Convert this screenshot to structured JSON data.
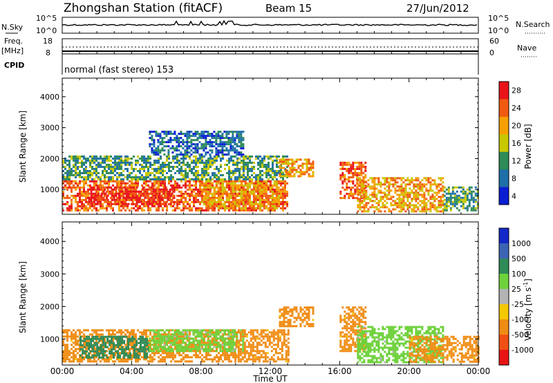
{
  "header": {
    "station": "Zhongshan Station (fitACF)",
    "beam": "Beam 15",
    "date": "27/Jun/2012"
  },
  "top_panels": {
    "nsky_label": "N.Sky",
    "nsky_ticks": [
      "10^5",
      "10^0"
    ],
    "nsearch_label": "N.Search",
    "nsearch_ticks": [
      "10^5",
      "10^0"
    ],
    "freq_label": "Freq.",
    "freq_unit": "[MHz]",
    "freq_ticks": [
      "18",
      "8"
    ],
    "nave_label": "Nave",
    "nave_ticks": [
      "60",
      "0"
    ],
    "cpid_label": "CPID",
    "cpid_text": "normal (fast stereo) 153"
  },
  "power_colorbar": {
    "title": "Power [dB]",
    "levels": [
      "28",
      "24",
      "20",
      "16",
      "12",
      "8",
      "4"
    ],
    "colors": [
      "#e8141a",
      "#f05a10",
      "#f5a000",
      "#c8c800",
      "#2e8b57",
      "#1f6fa8",
      "#0a1ed2"
    ]
  },
  "velocity_colorbar": {
    "title": "Velocity [m s",
    "title_sup": "-1",
    "title_end": "]",
    "levels": [
      "1000",
      "500",
      "100",
      "25",
      "-25",
      "-100",
      "-500",
      "-1000"
    ],
    "colors": [
      "#1428c8",
      "#3c64b4",
      "#2e8b57",
      "#6ed23c",
      "#b4b4b4",
      "#f5c800",
      "#f08c14",
      "#f05014",
      "#e81414"
    ]
  },
  "chart_data": [
    {
      "type": "heatmap",
      "title": "Power",
      "ylabel": "Slant Range [km]",
      "xlabel": "Time UT",
      "x_ticks": [
        "00:00",
        "04:00",
        "08:00",
        "12:00",
        "16:00",
        "20:00",
        "00:00"
      ],
      "y_ticks": [
        1000,
        2000,
        3000,
        4000
      ],
      "ylim": [
        200,
        4600
      ],
      "xlim_hours": [
        0,
        24
      ],
      "regions": [
        {
          "t0": 0.0,
          "t1": 13.0,
          "r0": 300,
          "r1": 1300,
          "level": 24
        },
        {
          "t0": 1.5,
          "t1": 6.5,
          "r0": 500,
          "r1": 1100,
          "level": 28
        },
        {
          "t0": 8.0,
          "t1": 12.5,
          "r0": 400,
          "r1": 1300,
          "level": 20
        },
        {
          "t0": 0.0,
          "t1": 13.0,
          "r0": 1300,
          "r1": 2100,
          "level": 12
        },
        {
          "t0": 5.0,
          "t1": 10.5,
          "r0": 2100,
          "r1": 2900,
          "level": 8
        },
        {
          "t0": 12.5,
          "t1": 14.5,
          "r0": 1400,
          "r1": 2000,
          "level": 20
        },
        {
          "t0": 16.0,
          "t1": 17.5,
          "r0": 700,
          "r1": 1900,
          "level": 24
        },
        {
          "t0": 17.0,
          "t1": 22.0,
          "r0": 300,
          "r1": 1400,
          "level": 20
        },
        {
          "t0": 22.0,
          "t1": 24.0,
          "r0": 300,
          "r1": 1100,
          "level": 12
        }
      ]
    },
    {
      "type": "heatmap",
      "title": "Velocity",
      "ylabel": "Slant Range [km]",
      "xlabel": "Time UT",
      "x_ticks": [
        "00:00",
        "04:00",
        "08:00",
        "12:00",
        "16:00",
        "20:00",
        "00:00"
      ],
      "y_ticks": [
        1000,
        2000,
        3000,
        4000
      ],
      "ylim": [
        200,
        4600
      ],
      "xlim_hours": [
        0,
        24
      ],
      "regions": [
        {
          "t0": 0.0,
          "t1": 10.0,
          "r0": 300,
          "r1": 1300,
          "level": -100
        },
        {
          "t0": 1.0,
          "t1": 5.0,
          "r0": 400,
          "r1": 1100,
          "level": 500
        },
        {
          "t0": 5.0,
          "t1": 10.5,
          "r0": 600,
          "r1": 1300,
          "level": 100
        },
        {
          "t0": 10.0,
          "t1": 13.0,
          "r0": 300,
          "r1": 1300,
          "level": -100
        },
        {
          "t0": 12.5,
          "t1": 14.5,
          "r0": 1400,
          "r1": 2000,
          "level": -100
        },
        {
          "t0": 16.0,
          "t1": 17.5,
          "r0": 600,
          "r1": 2000,
          "level": -100
        },
        {
          "t0": 17.0,
          "t1": 22.0,
          "r0": 300,
          "r1": 1400,
          "level": 100
        },
        {
          "t0": 20.0,
          "t1": 24.0,
          "r0": 300,
          "r1": 1100,
          "level": -100
        }
      ]
    }
  ],
  "axis": {
    "xlabel": "Time UT",
    "ylabel": "Slant Range [km]"
  }
}
